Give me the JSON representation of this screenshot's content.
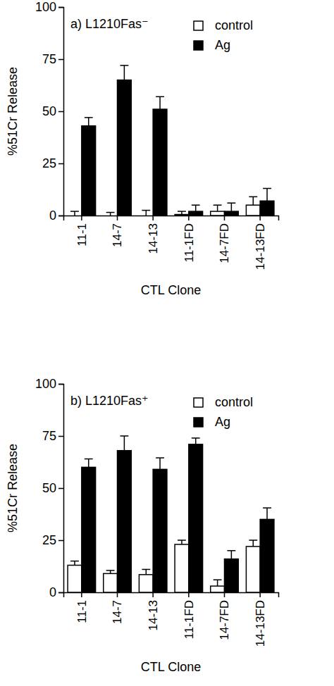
{
  "chart_data": [
    {
      "type": "bar",
      "title": "a) L1210Fas⁻",
      "y_label": "%51Cr Release",
      "x_label": "CTL Clone",
      "categories": [
        "11-1",
        "14-7",
        "14-13",
        "11-1FD",
        "14-7FD",
        "14-13FD"
      ],
      "series": [
        {
          "name": "control",
          "color": "#ffffff",
          "values": [
            0,
            0,
            0,
            0.5,
            2,
            5
          ],
          "errors": [
            2,
            1.5,
            2.5,
            1.5,
            3,
            4
          ]
        },
        {
          "name": "Ag",
          "color": "#000000",
          "values": [
            43,
            65,
            51,
            2,
            2,
            7
          ],
          "errors": [
            4,
            7,
            6,
            3,
            4,
            6
          ]
        }
      ],
      "ylim": [
        0,
        100
      ],
      "yticks": [
        0,
        25,
        50,
        75,
        100
      ],
      "legend": "upper right"
    },
    {
      "type": "bar",
      "title": "b) L1210Fas⁺",
      "y_label": "%51Cr Release",
      "x_label": "CTL Clone",
      "categories": [
        "11-1",
        "14-7",
        "14-13",
        "11-1FD",
        "14-7FD",
        "14-13FD"
      ],
      "series": [
        {
          "name": "control",
          "color": "#ffffff",
          "values": [
            13,
            9,
            8.5,
            23,
            3,
            22
          ],
          "errors": [
            2,
            1.5,
            2.5,
            2,
            3,
            3
          ]
        },
        {
          "name": "Ag",
          "color": "#000000",
          "values": [
            60,
            68,
            59,
            71,
            16,
            35
          ],
          "errors": [
            4,
            7,
            5.5,
            3,
            4,
            5.5
          ]
        }
      ],
      "ylim": [
        0,
        100
      ],
      "yticks": [
        0,
        25,
        50,
        75,
        100
      ],
      "legend": "upper right"
    }
  ]
}
